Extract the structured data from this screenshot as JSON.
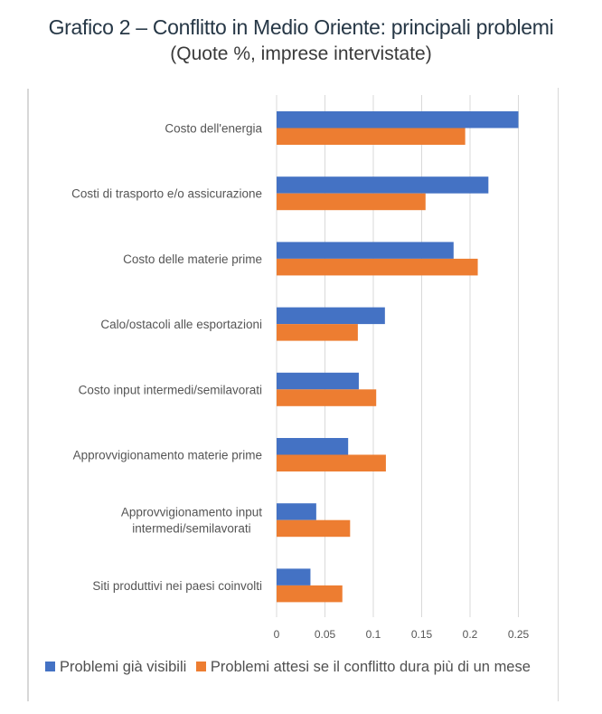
{
  "chart_data": {
    "type": "bar",
    "orientation": "horizontal",
    "title": "Grafico 2 – Conflitto in Medio Oriente: principali problemi",
    "subtitle": "(Quote %, imprese intervistate)",
    "xlabel": "",
    "ylabel": "",
    "xlim": [
      0,
      0.25
    ],
    "xticks": [
      0,
      0.05,
      0.1,
      0.15,
      0.2,
      0.25
    ],
    "xtick_labels": [
      "0",
      "0.05",
      "0.1",
      "0.15",
      "0.2",
      "0.25"
    ],
    "grid": true,
    "legend_position": "bottom",
    "categories": [
      [
        "Costo dell'energia"
      ],
      [
        "Costi di trasporto e/o assicurazione"
      ],
      [
        "Costo delle materie prime"
      ],
      [
        "Calo/ostacoli alle esportazioni"
      ],
      [
        "Costo input intermedi/semilavorati"
      ],
      [
        "Approvvigionamento materie prime"
      ],
      [
        "Approvvigionamento input",
        "intermedi/semilavorati"
      ],
      [
        "Siti produttivi nei paesi coinvolti"
      ]
    ],
    "series": [
      {
        "name": "Problemi già visibili",
        "color": "#4472C4",
        "values": [
          0.25,
          0.219,
          0.183,
          0.112,
          0.085,
          0.074,
          0.041,
          0.035
        ]
      },
      {
        "name": "Problemi attesi se il conflitto dura più di un mese",
        "color": "#ED7D31",
        "values": [
          0.195,
          0.154,
          0.208,
          0.084,
          0.103,
          0.113,
          0.076,
          0.068
        ]
      }
    ]
  }
}
